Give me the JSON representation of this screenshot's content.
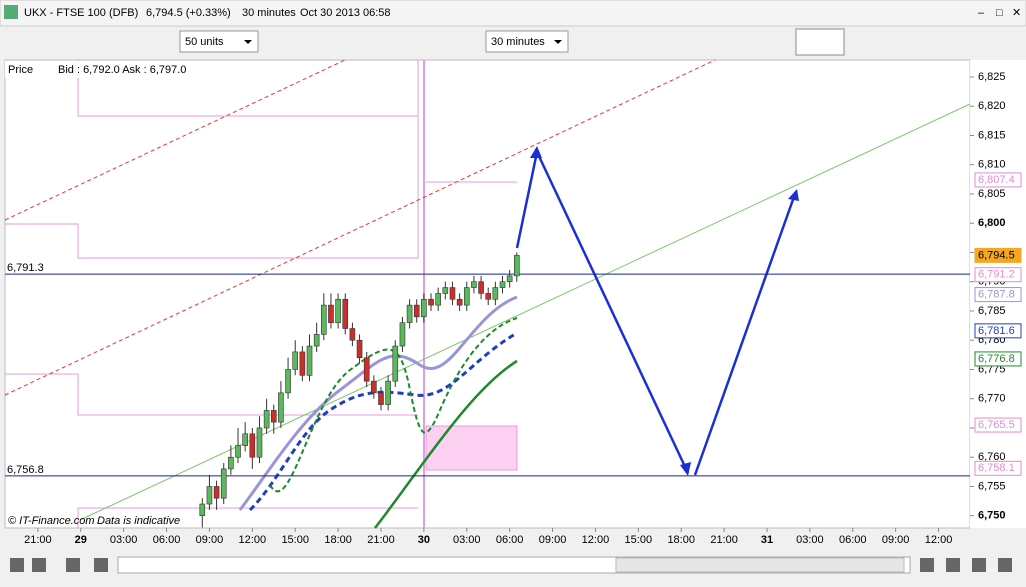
{
  "header": {
    "instrument": "UKX - FTSE 100 (DFB)",
    "quote": "6,794.5 (+0.33%)",
    "interval": "30 minutes",
    "timestamp": "Oct 30 2013 06:58"
  },
  "toolbar": {
    "units": "50 units",
    "interval": "30 minutes"
  },
  "info": {
    "series": "Price",
    "bid_ask": "Bid : 6,792.0 Ask : 6,797.0"
  },
  "footer": {
    "copyright": "© IT-Finance.com",
    "note": "Data is indicative"
  },
  "chart_data": {
    "type": "candlestick",
    "x": [
      11.5,
      12,
      12.5,
      13,
      13.5,
      14,
      14.5,
      15,
      15.5,
      16,
      16.5,
      17,
      17.5,
      18,
      18.5,
      19,
      19.5,
      20,
      20.5,
      21,
      21.5,
      22,
      22.5,
      23,
      23.5,
      24,
      24.5,
      25,
      25.5,
      26,
      26.5,
      27,
      27.5,
      28,
      28.5,
      29,
      29.5,
      30,
      30.5,
      31,
      31.5,
      32,
      32.5,
      33,
      33.5
    ],
    "open": [
      6750,
      6752,
      6755,
      6753,
      6758,
      6760,
      6762,
      6764,
      6760,
      6765,
      6768,
      6766,
      6771,
      6775,
      6778,
      6774,
      6779,
      6781,
      6786,
      6783,
      6787,
      6782,
      6780,
      6777,
      6773,
      6771,
      6769,
      6773,
      6779,
      6783,
      6786,
      6784,
      6787,
      6786,
      6788,
      6789,
      6787,
      6786,
      6789,
      6790,
      6788,
      6787,
      6789,
      6790,
      6791
    ],
    "high": [
      6753,
      6757,
      6756,
      6759,
      6762,
      6765,
      6766,
      6765,
      6767,
      6770,
      6769,
      6773,
      6777,
      6780,
      6779,
      6781,
      6783,
      6788,
      6788,
      6788,
      6788,
      6783,
      6781,
      6778,
      6774,
      6772,
      6774,
      6780,
      6784,
      6787,
      6787,
      6788,
      6788,
      6789,
      6790,
      6790,
      6788,
      6790,
      6791,
      6791,
      6789,
      6790,
      6791,
      6792,
      6795
    ],
    "low": [
      6748,
      6751,
      6751,
      6752,
      6757,
      6759,
      6761,
      6758,
      6759,
      6764,
      6764,
      6765,
      6770,
      6774,
      6773,
      6773,
      6778,
      6780,
      6782,
      6782,
      6781,
      6779,
      6776,
      6772,
      6770,
      6768,
      6768,
      6772,
      6778,
      6782,
      6783,
      6783,
      6785,
      6785,
      6787,
      6786,
      6785,
      6785,
      6788,
      6787,
      6786,
      6786,
      6788,
      6789,
      6790
    ],
    "close": [
      6752,
      6755,
      6753,
      6758,
      6760,
      6762,
      6764,
      6760,
      6765,
      6768,
      6766,
      6771,
      6775,
      6778,
      6774,
      6779,
      6781,
      6786,
      6783,
      6787,
      6782,
      6780,
      6777,
      6773,
      6771,
      6769,
      6773,
      6779,
      6783,
      6786,
      6784,
      6787,
      6786,
      6788,
      6789,
      6787,
      6786,
      6789,
      6790,
      6788,
      6787,
      6789,
      6790,
      6791,
      6794.5
    ],
    "up_color": "#5cb85c",
    "down_color": "#c9302c",
    "xlim": [
      -2.3,
      65.2
    ],
    "xticks": [
      {
        "value": 0,
        "label": "21:00"
      },
      {
        "value": 3,
        "label": "29"
      },
      {
        "value": 6,
        "label": "03:00"
      },
      {
        "value": 9,
        "label": "06:00"
      },
      {
        "value": 12,
        "label": "09:00"
      },
      {
        "value": 15,
        "label": "12:00"
      },
      {
        "value": 18,
        "label": "15:00"
      },
      {
        "value": 21,
        "label": "18:00"
      },
      {
        "value": 24,
        "label": "21:00"
      },
      {
        "value": 27,
        "label": "30"
      },
      {
        "value": 30,
        "label": "03:00"
      },
      {
        "value": 33,
        "label": "06:00"
      },
      {
        "value": 36,
        "label": "09:00"
      },
      {
        "value": 39,
        "label": "12:00"
      },
      {
        "value": 42,
        "label": "15:00"
      },
      {
        "value": 45,
        "label": "18:00"
      },
      {
        "value": 48,
        "label": "21:00"
      },
      {
        "value": 51,
        "label": "31"
      },
      {
        "value": 54,
        "label": "03:00"
      },
      {
        "value": 57,
        "label": "06:00"
      },
      {
        "value": 60,
        "label": "09:00"
      },
      {
        "value": 63,
        "label": "12:00"
      }
    ],
    "ylim": [
      6747.9,
      6827.9
    ],
    "yticks": [
      {
        "value": 6750,
        "label": "6,750"
      },
      {
        "value": 6755,
        "label": "6,755"
      },
      {
        "value": 6760,
        "label": "6,760"
      },
      {
        "value": 6765,
        "label": "6,765"
      },
      {
        "value": 6770,
        "label": "6,770"
      },
      {
        "value": 6775,
        "label": "6,775"
      },
      {
        "value": 6780,
        "label": "6,780"
      },
      {
        "value": 6785,
        "label": "6,785"
      },
      {
        "value": 6790,
        "label": "6,790"
      },
      {
        "value": 6795,
        "label": "6,795"
      },
      {
        "value": 6800,
        "label": "6,800"
      },
      {
        "value": 6805,
        "label": "6,805"
      },
      {
        "value": 6810,
        "label": "6,810"
      },
      {
        "value": 6815,
        "label": "6,815"
      },
      {
        "value": 6820,
        "label": "6,820"
      },
      {
        "value": 6825,
        "label": "6,825"
      }
    ],
    "hlines": [
      {
        "value": 6791.3,
        "label": "6,791.3"
      },
      {
        "value": 6756.8,
        "label": "6,756.8"
      }
    ],
    "price_tags": [
      {
        "value": 6807.4,
        "label": "6,807.4",
        "color": "#e48ad0"
      },
      {
        "value": 6794.5,
        "label": "6,794.5",
        "color": "#f5a623"
      },
      {
        "value": 6791.2,
        "label": "6,791.2",
        "color": "#e48ad0"
      },
      {
        "value": 6787.8,
        "label": "6,787.8",
        "color": "#9a94d8"
      },
      {
        "value": 6781.6,
        "label": "6,781.6",
        "color": "#1f3fbf"
      },
      {
        "value": 6776.8,
        "label": "6,776.8",
        "color": "#1d8a2b"
      },
      {
        "value": 6765.5,
        "label": "6,765.5",
        "color": "#e48ad0"
      },
      {
        "value": 6758.1,
        "label": "6,758.1",
        "color": "#e48ad0"
      }
    ]
  }
}
